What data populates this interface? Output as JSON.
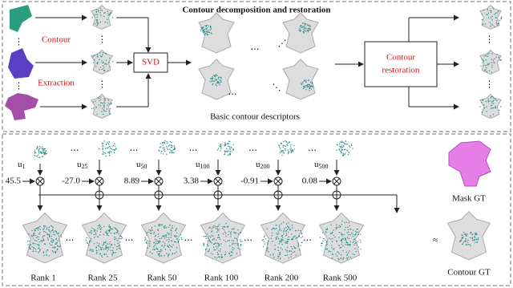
{
  "header": {
    "title": "Contour decomposition and restoration"
  },
  "top": {
    "left_labels": [
      "Contour",
      "Extraction"
    ],
    "svd": "SVD",
    "descriptors": "Basic contour descriptors",
    "restoration": [
      "Contour",
      "restoration"
    ]
  },
  "bottom": {
    "items": [
      {
        "symbol": "u",
        "sub": "1",
        "coef": "45.5",
        "rank": "Rank 1"
      },
      {
        "symbol": "u",
        "sub": "25",
        "coef": "-27.0",
        "rank": "Rank 25"
      },
      {
        "symbol": "u",
        "sub": "50",
        "coef": "8.89",
        "rank": "Rank 50"
      },
      {
        "symbol": "u",
        "sub": "100",
        "coef": "3.38",
        "rank": "Rank 100"
      },
      {
        "symbol": "u",
        "sub": "200",
        "coef": "-0.91",
        "rank": "Rank 200"
      },
      {
        "symbol": "u",
        "sub": "500",
        "coef": "0.08",
        "rank": "Rank 500"
      }
    ],
    "mask_gt": "Mask GT",
    "contour_gt": "Contour GT"
  }
}
